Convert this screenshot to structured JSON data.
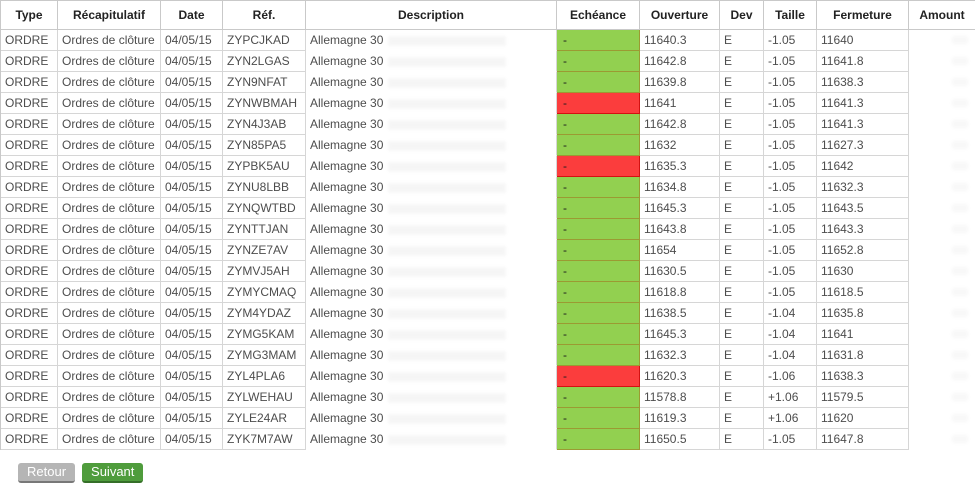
{
  "table": {
    "columns": [
      {
        "key": "type",
        "label": "Type"
      },
      {
        "key": "recapitulatif",
        "label": "Récapitulatif"
      },
      {
        "key": "date",
        "label": "Date"
      },
      {
        "key": "ref",
        "label": "Réf."
      },
      {
        "key": "description",
        "label": "Description"
      },
      {
        "key": "echeance",
        "label": "Echéance"
      },
      {
        "key": "ouverture",
        "label": "Ouverture"
      },
      {
        "key": "dev",
        "label": "Dev"
      },
      {
        "key": "taille",
        "label": "Taille"
      },
      {
        "key": "fermeture",
        "label": "Fermeture"
      },
      {
        "key": "amount",
        "label": "Amount"
      }
    ],
    "rows": [
      {
        "type": "ORDRE",
        "recapitulatif": "Ordres de clôture",
        "date": "04/05/15",
        "ref": "ZYPCJKAD",
        "description": "Allemagne 30",
        "echeance": "-",
        "echeance_status": "up",
        "ouverture": "11640.3",
        "dev": "E",
        "taille": "-1.05",
        "fermeture": "11640",
        "amount": ""
      },
      {
        "type": "ORDRE",
        "recapitulatif": "Ordres de clôture",
        "date": "04/05/15",
        "ref": "ZYN2LGAS",
        "description": "Allemagne 30",
        "echeance": "-",
        "echeance_status": "up",
        "ouverture": "11642.8",
        "dev": "E",
        "taille": "-1.05",
        "fermeture": "11641.8",
        "amount": ""
      },
      {
        "type": "ORDRE",
        "recapitulatif": "Ordres de clôture",
        "date": "04/05/15",
        "ref": "ZYN9NFAT",
        "description": "Allemagne 30",
        "echeance": "-",
        "echeance_status": "up",
        "ouverture": "11639.8",
        "dev": "E",
        "taille": "-1.05",
        "fermeture": "11638.3",
        "amount": ""
      },
      {
        "type": "ORDRE",
        "recapitulatif": "Ordres de clôture",
        "date": "04/05/15",
        "ref": "ZYNWBMAH",
        "description": "Allemagne 30",
        "echeance": "-",
        "echeance_status": "down",
        "ouverture": "11641",
        "dev": "E",
        "taille": "-1.05",
        "fermeture": "11641.3",
        "amount": ""
      },
      {
        "type": "ORDRE",
        "recapitulatif": "Ordres de clôture",
        "date": "04/05/15",
        "ref": "ZYN4J3AB",
        "description": "Allemagne 30",
        "echeance": "-",
        "echeance_status": "up",
        "ouverture": "11642.8",
        "dev": "E",
        "taille": "-1.05",
        "fermeture": "11641.3",
        "amount": ""
      },
      {
        "type": "ORDRE",
        "recapitulatif": "Ordres de clôture",
        "date": "04/05/15",
        "ref": "ZYN85PA5",
        "description": "Allemagne 30",
        "echeance": "-",
        "echeance_status": "up",
        "ouverture": "11632",
        "dev": "E",
        "taille": "-1.05",
        "fermeture": "11627.3",
        "amount": ""
      },
      {
        "type": "ORDRE",
        "recapitulatif": "Ordres de clôture",
        "date": "04/05/15",
        "ref": "ZYPBK5AU",
        "description": "Allemagne 30",
        "echeance": "-",
        "echeance_status": "down",
        "ouverture": "11635.3",
        "dev": "E",
        "taille": "-1.05",
        "fermeture": "11642",
        "amount": ""
      },
      {
        "type": "ORDRE",
        "recapitulatif": "Ordres de clôture",
        "date": "04/05/15",
        "ref": "ZYNU8LBB",
        "description": "Allemagne 30",
        "echeance": "-",
        "echeance_status": "up",
        "ouverture": "11634.8",
        "dev": "E",
        "taille": "-1.05",
        "fermeture": "11632.3",
        "amount": ""
      },
      {
        "type": "ORDRE",
        "recapitulatif": "Ordres de clôture",
        "date": "04/05/15",
        "ref": "ZYNQWTBD",
        "description": "Allemagne 30",
        "echeance": "-",
        "echeance_status": "up",
        "ouverture": "11645.3",
        "dev": "E",
        "taille": "-1.05",
        "fermeture": "11643.5",
        "amount": ""
      },
      {
        "type": "ORDRE",
        "recapitulatif": "Ordres de clôture",
        "date": "04/05/15",
        "ref": "ZYNTTJAN",
        "description": "Allemagne 30",
        "echeance": "-",
        "echeance_status": "up",
        "ouverture": "11643.8",
        "dev": "E",
        "taille": "-1.05",
        "fermeture": "11643.3",
        "amount": ""
      },
      {
        "type": "ORDRE",
        "recapitulatif": "Ordres de clôture",
        "date": "04/05/15",
        "ref": "ZYNZE7AV",
        "description": "Allemagne 30",
        "echeance": "-",
        "echeance_status": "up",
        "ouverture": "11654",
        "dev": "E",
        "taille": "-1.05",
        "fermeture": "11652.8",
        "amount": ""
      },
      {
        "type": "ORDRE",
        "recapitulatif": "Ordres de clôture",
        "date": "04/05/15",
        "ref": "ZYMVJ5AH",
        "description": "Allemagne 30",
        "echeance": "-",
        "echeance_status": "up",
        "ouverture": "11630.5",
        "dev": "E",
        "taille": "-1.05",
        "fermeture": "11630",
        "amount": ""
      },
      {
        "type": "ORDRE",
        "recapitulatif": "Ordres de clôture",
        "date": "04/05/15",
        "ref": "ZYMYCMAQ",
        "description": "Allemagne 30",
        "echeance": "-",
        "echeance_status": "up",
        "ouverture": "11618.8",
        "dev": "E",
        "taille": "-1.05",
        "fermeture": "11618.5",
        "amount": ""
      },
      {
        "type": "ORDRE",
        "recapitulatif": "Ordres de clôture",
        "date": "04/05/15",
        "ref": "ZYM4YDAZ",
        "description": "Allemagne 30",
        "echeance": "-",
        "echeance_status": "up",
        "ouverture": "11638.5",
        "dev": "E",
        "taille": "-1.04",
        "fermeture": "11635.8",
        "amount": ""
      },
      {
        "type": "ORDRE",
        "recapitulatif": "Ordres de clôture",
        "date": "04/05/15",
        "ref": "ZYMG5KAM",
        "description": "Allemagne 30",
        "echeance": "-",
        "echeance_status": "up",
        "ouverture": "11645.3",
        "dev": "E",
        "taille": "-1.04",
        "fermeture": "11641",
        "amount": ""
      },
      {
        "type": "ORDRE",
        "recapitulatif": "Ordres de clôture",
        "date": "04/05/15",
        "ref": "ZYMG3MAM",
        "description": "Allemagne 30",
        "echeance": "-",
        "echeance_status": "up",
        "ouverture": "11632.3",
        "dev": "E",
        "taille": "-1.04",
        "fermeture": "11631.8",
        "amount": ""
      },
      {
        "type": "ORDRE",
        "recapitulatif": "Ordres de clôture",
        "date": "04/05/15",
        "ref": "ZYL4PLA6",
        "description": "Allemagne 30",
        "echeance": "-",
        "echeance_status": "down",
        "ouverture": "11620.3",
        "dev": "E",
        "taille": "-1.06",
        "fermeture": "11638.3",
        "amount": ""
      },
      {
        "type": "ORDRE",
        "recapitulatif": "Ordres de clôture",
        "date": "04/05/15",
        "ref": "ZYLWEHAU",
        "description": "Allemagne 30",
        "echeance": "-",
        "echeance_status": "up",
        "ouverture": "11578.8",
        "dev": "E",
        "taille": "+1.06",
        "fermeture": "11579.5",
        "amount": ""
      },
      {
        "type": "ORDRE",
        "recapitulatif": "Ordres de clôture",
        "date": "04/05/15",
        "ref": "ZYLE24AR",
        "description": "Allemagne 30",
        "echeance": "-",
        "echeance_status": "up",
        "ouverture": "11619.3",
        "dev": "E",
        "taille": "+1.06",
        "fermeture": "11620",
        "amount": ""
      },
      {
        "type": "ORDRE",
        "recapitulatif": "Ordres de clôture",
        "date": "04/05/15",
        "ref": "ZYK7M7AW",
        "description": "Allemagne 30",
        "echeance": "-",
        "echeance_status": "up",
        "ouverture": "11650.5",
        "dev": "E",
        "taille": "-1.05",
        "fermeture": "11647.8",
        "amount": ""
      }
    ]
  },
  "pagination": {
    "back_label": "Retour",
    "next_label": "Suivant"
  },
  "colors": {
    "echeance_up": "#92d050",
    "echeance_down": "#fb3d3d",
    "back_button": "#b5b5b5",
    "next_button": "#4f9c3c"
  }
}
